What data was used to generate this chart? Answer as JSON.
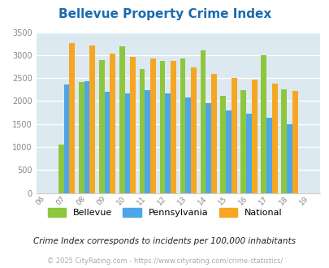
{
  "title": "Bellevue Property Crime Index",
  "years": [
    "06",
    "07",
    "08",
    "09",
    "10",
    "11",
    "12",
    "13",
    "14",
    "15",
    "16",
    "17",
    "18",
    "19"
  ],
  "plot_indices": [
    1,
    2,
    3,
    4,
    5,
    6,
    7,
    8,
    9,
    10,
    11,
    12
  ],
  "bellevue": [
    1050,
    2420,
    2900,
    3200,
    2700,
    2880,
    2930,
    3110,
    2110,
    2230,
    3000,
    2250
  ],
  "pennsylvania": [
    2370,
    2430,
    2200,
    2175,
    2230,
    2160,
    2075,
    1950,
    1800,
    1720,
    1640,
    1490
  ],
  "national": [
    3260,
    3210,
    3040,
    2960,
    2920,
    2875,
    2730,
    2600,
    2500,
    2470,
    2380,
    2215
  ],
  "bellevue_color": "#8dc63f",
  "pennsylvania_color": "#4da6e8",
  "national_color": "#f5a623",
  "bg_color": "#dce9f0",
  "ylim": [
    0,
    3500
  ],
  "yticks": [
    0,
    500,
    1000,
    1500,
    2000,
    2500,
    3000,
    3500
  ],
  "grid_color": "#ffffff",
  "footnote1": "Crime Index corresponds to incidents per 100,000 inhabitants",
  "footnote2": "© 2025 CityRating.com - https://www.cityrating.com/crime-statistics/",
  "title_color": "#1a6bb0",
  "footnote1_color": "#222222",
  "footnote2_color": "#aaaaaa"
}
